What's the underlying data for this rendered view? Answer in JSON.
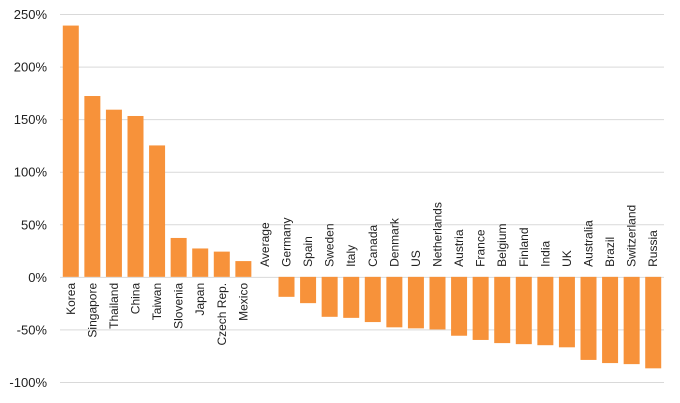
{
  "chart_data": {
    "type": "bar",
    "title": "",
    "xlabel": "",
    "ylabel": "",
    "ylim": [
      -100,
      250
    ],
    "ytick_step": 50,
    "ytick_suffix": "%",
    "grid": true,
    "bar_color": "#F7923A",
    "grid_color": "#d9d9d9",
    "categories": [
      "Korea",
      "Singapore",
      "Thailand",
      "China",
      "Taiwan",
      "Slovenia",
      "Japan",
      "Czech Rep.",
      "Mexico",
      "Average",
      "Germany",
      "Spain",
      "Sweden",
      "Italy",
      "Canada",
      "Denmark",
      "US",
      "Netherlands",
      "Austria",
      "France",
      "Belgium",
      "Finland",
      "India",
      "UK",
      "Australia",
      "Brazil",
      "Switzerland",
      "Russia"
    ],
    "values": [
      239,
      172,
      159,
      153,
      125,
      37,
      27,
      24,
      15,
      0,
      -19,
      -25,
      -38,
      -39,
      -43,
      -48,
      -49,
      -50,
      -56,
      -60,
      -63,
      -64,
      -65,
      -67,
      -79,
      -82,
      -83,
      -87
    ]
  }
}
